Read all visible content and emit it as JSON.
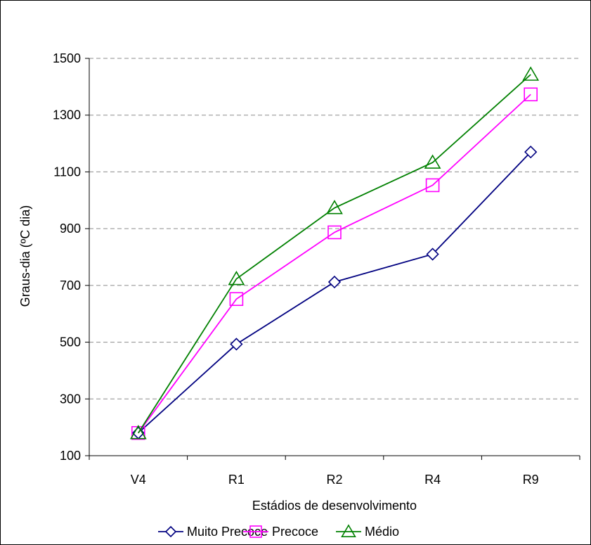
{
  "chart_data": {
    "type": "line",
    "categories": [
      "V4",
      "R1",
      "R2",
      "R4",
      "R9"
    ],
    "series": [
      {
        "name": "Muito Precoce",
        "values": [
          180,
          493,
          712,
          810,
          1170
        ],
        "color": "#000080",
        "marker": "diamond"
      },
      {
        "name": "Precoce",
        "values": [
          180,
          652,
          887,
          1053,
          1373
        ],
        "color": "#ff00ff",
        "marker": "square"
      },
      {
        "name": "Médio",
        "values": [
          180,
          723,
          973,
          1133,
          1443
        ],
        "color": "#008000",
        "marker": "triangle"
      }
    ],
    "title": "",
    "xlabel": "Estádios de desenvolvimento",
    "ylabel": "Graus-dia (ºC dia)",
    "ylim": [
      100,
      1500
    ],
    "yticks": [
      100,
      300,
      500,
      700,
      900,
      1100,
      1300,
      1500
    ],
    "grid": "horizontal dashed",
    "legend": "bottom"
  }
}
